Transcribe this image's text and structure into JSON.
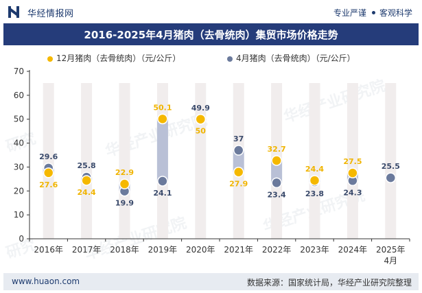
{
  "header": {
    "brand": "华经情报网",
    "slogan_left": "专业严谨",
    "slogan_right": "客观科学"
  },
  "title": "2016-2025年4月猪肉（去骨统肉）集贸市场价格走势",
  "legend": {
    "series_a": "12月猪肉（去骨统肉）（元/公斤）",
    "series_b": "4月猪肉（去骨统肉）（元/公斤）"
  },
  "watermarks": [
    "华经产业研究院",
    "华经产业研究院",
    "华经产业研究院",
    "华经产业研究院",
    "研究",
    "研究"
  ],
  "footer": {
    "url": "www.huaon.com",
    "source": "数据来源：国家统计局，华经产业研究院整理"
  },
  "colors": {
    "title_bg": "#253c7a",
    "series_a": "#f5b800",
    "series_b": "#6b7a9c",
    "label_a": "#f0b400",
    "label_b": "#3a4a6b",
    "column_bg": "#f1eded",
    "connector": "#b9c0d6"
  },
  "chart_data": {
    "type": "dumbbell",
    "categories": [
      "2016年",
      "2017年",
      "2018年",
      "2019年",
      "2020年",
      "2021年",
      "2022年",
      "2023年",
      "2024年",
      "2025年\n4月"
    ],
    "ylim": [
      0,
      70
    ],
    "yticks": [
      0,
      10,
      20,
      30,
      40,
      50,
      60,
      70
    ],
    "series": [
      {
        "name": "12月猪肉（去骨统肉）（元/公斤）",
        "values": [
          27.6,
          24.4,
          22.9,
          50.1,
          50,
          27.9,
          32.7,
          24.4,
          27.5,
          null
        ]
      },
      {
        "name": "4月猪肉（去骨统肉）（元/公斤）",
        "values": [
          29.6,
          25.8,
          19.9,
          24.1,
          49.9,
          37,
          23.4,
          23.8,
          24.3,
          25.5
        ]
      }
    ],
    "grid": false,
    "legend_position": "top"
  }
}
